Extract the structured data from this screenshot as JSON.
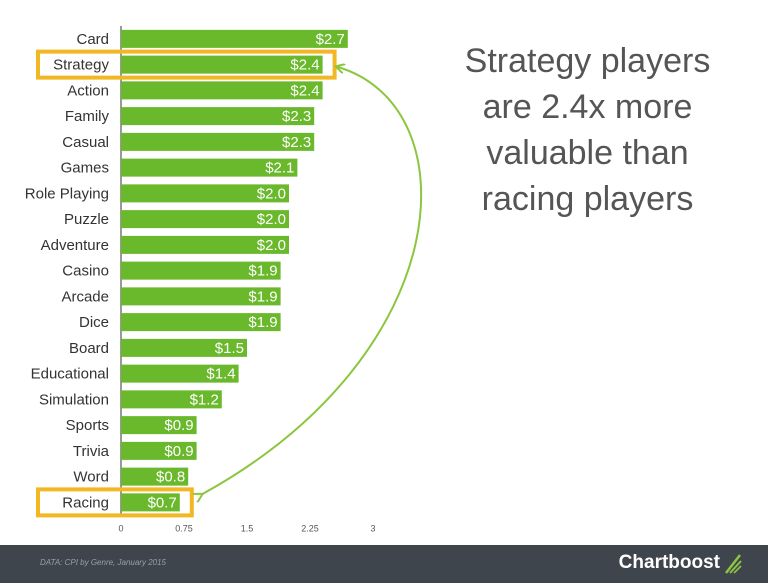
{
  "headline": [
    "Strategy players",
    "are 2.4x more",
    "valuable than",
    "racing players"
  ],
  "footer": {
    "source": "DATA: CPI by Genre, January 2015",
    "brand": "Chartboost"
  },
  "colors": {
    "bar": "#6ab82b",
    "highlight": "#f2b824",
    "arrow": "#8cc63f",
    "footer_bg": "#3f454d"
  },
  "chart_data": {
    "type": "bar",
    "orientation": "horizontal",
    "categories": [
      "Card",
      "Strategy",
      "Action",
      "Family",
      "Casual",
      "Games",
      "Role Playing",
      "Puzzle",
      "Adventure",
      "Casino",
      "Arcade",
      "Dice",
      "Board",
      "Educational",
      "Simulation",
      "Sports",
      "Trivia",
      "Word",
      "Racing"
    ],
    "values": [
      2.7,
      2.4,
      2.4,
      2.3,
      2.3,
      2.1,
      2.0,
      2.0,
      2.0,
      1.9,
      1.9,
      1.9,
      1.5,
      1.4,
      1.2,
      0.9,
      0.9,
      0.8,
      0.7
    ],
    "value_labels": [
      "$2.7",
      "$2.4",
      "$2.4",
      "$2.3",
      "$2.3",
      "$2.1",
      "$2.0",
      "$2.0",
      "$2.0",
      "$1.9",
      "$1.9",
      "$1.9",
      "$1.5",
      "$1.4",
      "$1.2",
      "$0.9",
      "$0.9",
      "$0.8",
      "$0.7"
    ],
    "xticks": [
      "0",
      "0.75",
      "1.5",
      "2.25",
      "3"
    ],
    "xlim": [
      0,
      3
    ],
    "highlighted": [
      "Strategy",
      "Racing"
    ],
    "annotation": "arrow from Racing to Strategy",
    "grid": false,
    "legend": "none",
    "title": "",
    "xlabel": "",
    "ylabel": ""
  }
}
